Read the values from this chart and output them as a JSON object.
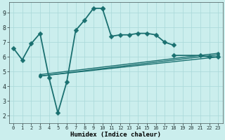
{
  "xlabel": "Humidex (Indice chaleur)",
  "xlim_min": -0.5,
  "xlim_max": 23.5,
  "ylim_min": 1.5,
  "ylim_max": 9.7,
  "xticks": [
    0,
    1,
    2,
    3,
    4,
    5,
    6,
    7,
    8,
    9,
    10,
    11,
    12,
    13,
    14,
    15,
    16,
    17,
    18,
    19,
    20,
    21,
    22,
    23
  ],
  "yticks": [
    2,
    3,
    4,
    5,
    6,
    7,
    8,
    9
  ],
  "bg_color": "#cbeeed",
  "line_color": "#1a7070",
  "grid_color": "#a8d8d8",
  "main_line_segments": [
    {
      "x": [
        0,
        1,
        2,
        3,
        4,
        5,
        6,
        7,
        8,
        9,
        10
      ],
      "y": [
        6.6,
        5.8,
        6.9,
        7.6,
        4.6,
        2.2,
        4.3,
        7.8,
        8.5,
        9.3,
        9.3
      ]
    },
    {
      "x": [
        10,
        11,
        12,
        13,
        14,
        15,
        16,
        17,
        18
      ],
      "y": [
        9.3,
        7.4,
        7.5,
        7.5,
        7.6,
        7.6,
        7.5,
        7.0,
        6.8
      ]
    },
    {
      "x": [
        18,
        21,
        22,
        23
      ],
      "y": [
        6.1,
        6.1,
        6.0,
        6.0
      ]
    }
  ],
  "main_lw": 1.3,
  "main_ms": 3.5,
  "flat_lines": [
    {
      "x": [
        3,
        23
      ],
      "y": [
        4.7,
        6.0
      ]
    },
    {
      "x": [
        3,
        23
      ],
      "y": [
        4.7,
        6.15
      ]
    },
    {
      "x": [
        3,
        23
      ],
      "y": [
        4.8,
        6.25
      ]
    }
  ],
  "flat_lw": 1.0,
  "flat_ms": 2.5
}
